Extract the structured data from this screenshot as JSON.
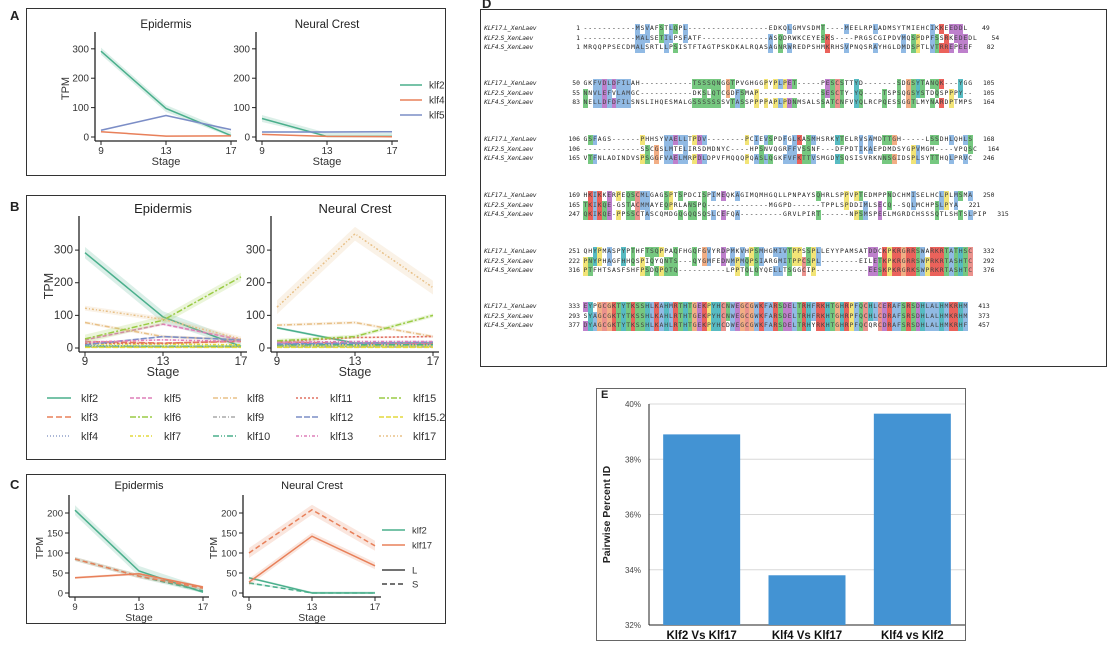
{
  "panels": {
    "A": {
      "label": "A"
    },
    "B": {
      "label": "B"
    },
    "C": {
      "label": "C"
    },
    "D": {
      "label": "D"
    },
    "E": {
      "label": "E"
    }
  },
  "chart_data": [
    {
      "id": "A",
      "type": "line",
      "facets": [
        "Epidermis",
        "Neural Crest"
      ],
      "x": [
        9,
        13,
        17
      ],
      "xlabel": "Stage",
      "ylabel": "TPM",
      "ylim": [
        0,
        330
      ],
      "yticks": [
        0,
        100,
        200,
        300
      ],
      "legend": "right",
      "series": [
        {
          "name": "klf2",
          "color": "#4aaf8c",
          "dash": "solid",
          "Epidermis": [
            292,
            97,
            5
          ],
          "Neural Crest": [
            63,
            2,
            2
          ],
          "band": 12
        },
        {
          "name": "klf4",
          "color": "#e8805a",
          "dash": "solid",
          "Epidermis": [
            18,
            3,
            4
          ],
          "Neural Crest": [
            9,
            2,
            1
          ],
          "band": 2
        },
        {
          "name": "klf5",
          "color": "#7b8dc6",
          "dash": "solid",
          "Epidermis": [
            23,
            73,
            25
          ],
          "Neural Crest": [
            17,
            17,
            18
          ],
          "band": 3
        }
      ]
    },
    {
      "id": "B",
      "type": "line",
      "facets": [
        "Epidermis",
        "Neural Crest"
      ],
      "x": [
        9,
        13,
        17
      ],
      "xlabel": "Stage",
      "ylabel": "TPM",
      "ylim": [
        0,
        380
      ],
      "yticks": [
        0,
        100,
        200,
        300
      ],
      "legend": "bottom",
      "series": [
        {
          "name": "klf2",
          "color": "#4aaf8c",
          "dash": "solid",
          "Epidermis": [
            292,
            95,
            5
          ],
          "Neural Crest": [
            62,
            15,
            15
          ]
        },
        {
          "name": "klf3",
          "color": "#e8805a",
          "dash": "6,3",
          "Epidermis": [
            20,
            15,
            20
          ],
          "Neural Crest": [
            18,
            15,
            12
          ]
        },
        {
          "name": "klf4",
          "color": "#8f9fc9",
          "dash": "1,2",
          "Epidermis": [
            8,
            5,
            5
          ],
          "Neural Crest": [
            8,
            5,
            5
          ]
        },
        {
          "name": "klf5",
          "color": "#de7eb8",
          "dash": "4,2",
          "Epidermis": [
            25,
            73,
            25
          ],
          "Neural Crest": [
            15,
            12,
            12
          ]
        },
        {
          "name": "klf6",
          "color": "#9acb45",
          "dash": "6,2,2,2",
          "Epidermis": [
            5,
            5,
            5
          ],
          "Neural Crest": [
            5,
            5,
            5
          ]
        },
        {
          "name": "klf7",
          "color": "#e4d93b",
          "dash": "3,2,1,2",
          "Epidermis": [
            12,
            12,
            10
          ],
          "Neural Crest": [
            10,
            8,
            6
          ]
        },
        {
          "name": "klf8",
          "color": "#e8c087",
          "dash": "5,2,1,2",
          "Epidermis": [
            78,
            35,
            25
          ],
          "Neural Crest": [
            70,
            78,
            35
          ]
        },
        {
          "name": "klf9",
          "color": "#a8a8a8",
          "dash": "4,2,1,2",
          "Epidermis": [
            3,
            3,
            3
          ],
          "Neural Crest": [
            3,
            3,
            3
          ]
        },
        {
          "name": "klf10",
          "color": "#4aaf8c",
          "dash": "6,2,1,2,1,2",
          "Epidermis": [
            5,
            5,
            5
          ],
          "Neural Crest": [
            10,
            10,
            10
          ]
        },
        {
          "name": "klf11",
          "color": "#e07060",
          "dash": "2,2",
          "Epidermis": [
            15,
            14,
            22
          ],
          "Neural Crest": [
            20,
            32,
            35
          ]
        },
        {
          "name": "klf12",
          "color": "#7b8dc6",
          "dash": "6,2",
          "Epidermis": [
            10,
            35,
            25
          ],
          "Neural Crest": [
            12,
            15,
            18
          ]
        },
        {
          "name": "klf13",
          "color": "#de7eb8",
          "dash": "3,2,1,2",
          "Epidermis": [
            18,
            25,
            20
          ],
          "Neural Crest": [
            18,
            20,
            20
          ]
        },
        {
          "name": "klf15",
          "color": "#9acb45",
          "dash": "6,2,2,2",
          "Epidermis": [
            28,
            85,
            218
          ],
          "Neural Crest": [
            22,
            35,
            100
          ]
        },
        {
          "name": "klf15.2",
          "color": "#e4d93b",
          "dash": "5,2",
          "Epidermis": [
            2,
            2,
            2
          ],
          "Neural Crest": [
            2,
            2,
            2
          ]
        },
        {
          "name": "klf17",
          "color": "#e8c087",
          "dash": "2,2,1,2",
          "Epidermis": [
            122,
            88,
            28
          ],
          "Neural Crest": [
            125,
            350,
            185
          ]
        }
      ]
    },
    {
      "id": "C",
      "type": "line",
      "facets": [
        "Epidermis",
        "Neural Crest"
      ],
      "x": [
        9,
        13,
        17
      ],
      "xlabel": "Stage",
      "ylabel": "TPM",
      "ylim": [
        0,
        225
      ],
      "yticks": [
        0,
        50,
        100,
        150,
        200
      ],
      "legend": "right",
      "legend_styles": [
        {
          "name": "L",
          "dash": "solid"
        },
        {
          "name": "S",
          "dash": "dashed"
        }
      ],
      "series": [
        {
          "name": "klf2",
          "subgenome": "L",
          "color": "#4aaf8c",
          "dash": "solid",
          "Epidermis": [
            207,
            55,
            2
          ],
          "Neural Crest": [
            38,
            0,
            0
          ]
        },
        {
          "name": "klf2",
          "subgenome": "S",
          "color": "#4aaf8c",
          "dash": "dashed",
          "Epidermis": [
            85,
            42,
            5
          ],
          "Neural Crest": [
            25,
            0,
            0
          ]
        },
        {
          "name": "klf17",
          "subgenome": "L",
          "color": "#e8805a",
          "dash": "solid",
          "Epidermis": [
            38,
            48,
            15
          ],
          "Neural Crest": [
            27,
            142,
            68
          ]
        },
        {
          "name": "klf17",
          "subgenome": "S",
          "color": "#e8805a",
          "dash": "dashed",
          "Epidermis": [
            85,
            42,
            12
          ],
          "Neural Crest": [
            100,
            208,
            118
          ]
        }
      ],
      "legend_genes": [
        {
          "name": "klf2",
          "color": "#4aaf8c"
        },
        {
          "name": "klf17",
          "color": "#e8805a"
        }
      ]
    },
    {
      "id": "E",
      "type": "bar",
      "categories": [
        "Klf2 Vs Klf17",
        "Klf4 Vs Klf17",
        "Klf4 vs Klf2"
      ],
      "values": [
        38.9,
        33.8,
        39.65
      ],
      "ylabel": "Pairwise Percent ID",
      "xlabel": "",
      "ylim": [
        32,
        40
      ],
      "yticks": [
        "32%",
        "34%",
        "36%",
        "38%",
        "40%"
      ],
      "ytick_values": [
        32,
        34,
        36,
        38,
        40
      ],
      "grid": true,
      "color": "#4393d3"
    }
  ],
  "alignment": {
    "blocks": [
      {
        "rows": [
          {
            "name": "KLF17.L_XenLaev",
            "start": "1",
            "seq": "-----------MSVAFSTLQPL-----------------EDKQLGMVSDMT----MEELRPLADMSYTMIEHCIKKEEDDL",
            "end": "49"
          },
          {
            "name": "KLF2.S_XenLaev",
            "start": "1",
            "seq": "-----------MALSETILPSFATF--------------ASQDRWKCEYESKS----PRGSCGIPDVMQSPDPFSSRKEDEDL",
            "end": "54"
          },
          {
            "name": "KLF4.S_XenLaev",
            "start": "1",
            "seq": "MRQQPPSECDMALSRTLLPSISTFTAGTPSKDKALRQASAGNRWREDPSHMKRHSVPNQSRAYHGLDMDSPTLVTRREPEEF",
            "end": "82"
          }
        ]
      },
      {
        "rows": [
          {
            "name": "KLF17.L_XenLaev",
            "start": "50",
            "seq": "GKFVDLDFILAH-----------TSSSQNGGTPVGHGGPYPLPET-----PESCSTTYD-------SDGSYTANQK---YGG",
            "end": "105"
          },
          {
            "name": "KLF2.S_XenLaev",
            "start": "55",
            "seq": "NNVLEFVLAMGC-----------DKSLQTCGDFSMAP-------------SESCTY-YQ----TSPSQGSYSTDQSPPPY--",
            "end": "105"
          },
          {
            "name": "KLF4.S_XenLaev",
            "start": "83",
            "seq": "NELLDFDFILSNSLIHQESMALGSSSSSSSVTASSPPPPAPLPDNMSALSSATCNFVYQLRCPQESSGGTLMYNARDPTMPS",
            "end": "164"
          }
        ]
      },
      {
        "rows": [
          {
            "name": "KLF17.L_XenLaev",
            "start": "106",
            "seq": "GSFAGS------PHHSYVAELLTPDV--------PCIEVSPDFGLKASMHSRKYTELRVSAMDTTGH-----LSSDHLQHLS",
            "end": "168"
          },
          {
            "name": "KLF2.S_XenLaev",
            "start": "106",
            "seq": "------------SSCGSLMTELIRSDMDNYC----HPSNVQGRFFVSSNF---DFPDTIKAEPDMDSYGPVMGM----VPQSC",
            "end": "164"
          },
          {
            "name": "KLF4.S_XenLaev",
            "start": "165",
            "seq": "VTFNLADINDVSPSGGFVAELMRPDLDPVFMQQQPQASLQGKFVFKTTVSMGDYSQSISVRKNNSGIDSPLSYTTHQLPRVC",
            "end": "246"
          }
        ]
      },
      {
        "rows": [
          {
            "name": "KLF17.L_XenLaev",
            "start": "169",
            "seq": "HKIKKERPEQSCMLGAGSPTSPDCISPIMEQKAGIMQMHGQLLPNPAYSQHRLSPPVPTEDMPPNDCHMISELHCLPLMSMA",
            "end": "250"
          },
          {
            "name": "KLF2.S_XenLaev",
            "start": "165",
            "seq": "TKIKQE-GSTACMMAYEQPRLANSPQ-------------MGGPD------TPPLSPDDIMLSECQ--SQLMCHPSLPYA",
            "end": "221"
          },
          {
            "name": "KLF4.S_XenLaev",
            "start": "247",
            "seq": "QKIKQE-PPSSCTASCQMDGQGQQSQSLCEFQA---------GRVLPIRT------NPSMSPEELMGRDCHSSSQTLSHTSLPIP",
            "end": "315"
          }
        ]
      },
      {
        "rows": [
          {
            "name": "KLF17.L_XenLaev",
            "start": "251",
            "seq": "QHYPMASPYPTHFTSQPPAQFHGQFGVYRDPMKVHPSMHGMIVTPPSSPLLEYYPAMSATDDCKPKRGRRSWARKRTATHSC",
            "end": "332"
          },
          {
            "name": "KLF2.S_XenLaev",
            "start": "222",
            "seq": "PNYPHAGFHHQSPIQYQNTS---QYGMFEDNMPMQPSIARGMITPPCSPL--------EILETKPKRGRRSWPRKRTASHTC",
            "end": "292"
          },
          {
            "name": "KLF4.S_XenLaev",
            "start": "316",
            "seq": "PTFHTSASFSHFPSDQPQTQ----------LPPTQLQYQELLTSGGCIP-----------EESKPKRGRKSWPRKRTASHTC",
            "end": "376"
          }
        ]
      },
      {
        "rows": [
          {
            "name": "KLF17.L_XenLaev",
            "start": "333",
            "seq": "EYPGCGKTYTKSSHLKAHMRTHTGEKPYHCNWEGCGWKFARSDELTRHFRKHTGHRPFQCHLCERAFSRSDHLALHMKRHM",
            "end": "413"
          },
          {
            "name": "KLF2.S_XenLaev",
            "start": "293",
            "seq": "SYAGCGKTYTKSSHLKAHLRTHTGEKPYHCNWEGCGWKFARSDELTRHFRKHTGHRPFQCHLCDRAFSRSDHLALHMKRHM",
            "end": "373"
          },
          {
            "name": "KLF4.S_XenLaev",
            "start": "377",
            "seq": "DYAGCGKTYTKSSHLKAHLRTHTGEKPYHCDWEGCGWKFARSDELTRHYRKHTGHRPFQCQRCDRAFSRSDHLALHMKRHF",
            "end": "457"
          }
        ]
      }
    ],
    "residue_colors": {
      "KR": "#e8473f",
      "DE": "#b36bc4",
      "AILMFWV": "#7eaee0",
      "STNQ": "#5fbf6a",
      "G": "#f0a070",
      "P": "#f0e060",
      "C": "#e8807a",
      "HY": "#3ab0b8"
    }
  }
}
